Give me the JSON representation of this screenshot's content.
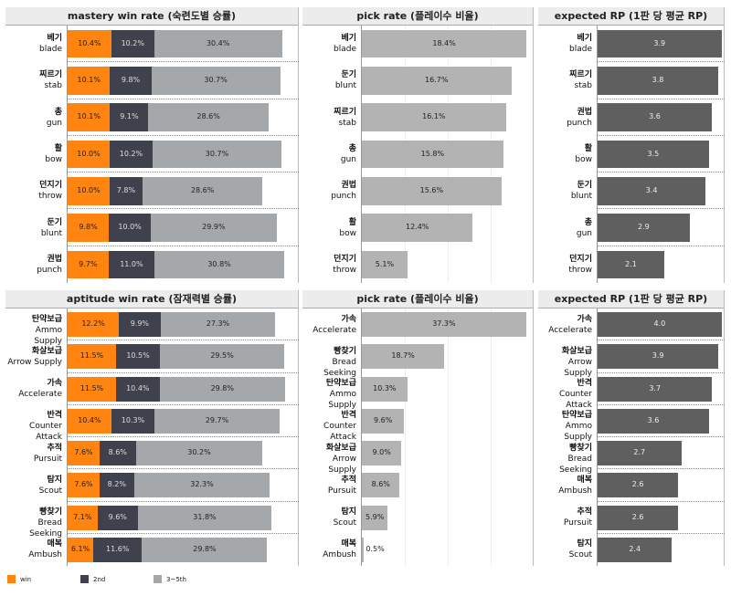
{
  "legend": [
    {
      "label": "win",
      "color": "#ff8410"
    },
    {
      "label": "2nd",
      "color": "#3f414d"
    },
    {
      "label": "3~5th",
      "color": "#a5a8ab"
    }
  ],
  "chart_data": [
    {
      "type": "bar",
      "stacked": true,
      "title": "mastery win rate (숙련도별 승률)",
      "xlim": [
        0,
        55
      ],
      "categories": [
        [
          "베기",
          "blade"
        ],
        [
          "찌르기",
          "stab"
        ],
        [
          "총",
          "gun"
        ],
        [
          "활",
          "bow"
        ],
        [
          "던지기",
          "throw"
        ],
        [
          "둔기",
          "blunt"
        ],
        [
          "권법",
          "punch"
        ]
      ],
      "series": [
        {
          "name": "win",
          "values": [
            10.4,
            10.1,
            10.1,
            10.0,
            10.0,
            9.8,
            9.7
          ]
        },
        {
          "name": "2nd",
          "values": [
            10.2,
            9.8,
            9.1,
            10.2,
            7.8,
            10.0,
            11.0
          ]
        },
        {
          "name": "3~5th",
          "values": [
            30.4,
            30.7,
            28.6,
            30.7,
            28.6,
            29.9,
            30.8
          ]
        }
      ],
      "unit": "%"
    },
    {
      "type": "bar",
      "title": "pick rate (플레이수 비율)",
      "xlim": [
        0,
        19.2
      ],
      "categories": [
        [
          "베기",
          "blade"
        ],
        [
          "둔기",
          "blunt"
        ],
        [
          "찌르기",
          "stab"
        ],
        [
          "총",
          "gun"
        ],
        [
          "권법",
          "punch"
        ],
        [
          "활",
          "bow"
        ],
        [
          "던지기",
          "throw"
        ]
      ],
      "series": [
        {
          "name": "pick rate",
          "values": [
            18.4,
            16.7,
            16.1,
            15.8,
            15.6,
            12.4,
            5.1
          ]
        }
      ],
      "unit": "%",
      "color": "#b3b3b3",
      "grid": true
    },
    {
      "type": "bar",
      "title": "expected RP (1판 당 평균 RP)",
      "xlim": [
        0,
        4.0
      ],
      "categories": [
        [
          "베기",
          "blade"
        ],
        [
          "찌르기",
          "stab"
        ],
        [
          "권법",
          "punch"
        ],
        [
          "활",
          "bow"
        ],
        [
          "둔기",
          "blunt"
        ],
        [
          "총",
          "gun"
        ],
        [
          "던지기",
          "throw"
        ]
      ],
      "series": [
        {
          "name": "expected RP",
          "values": [
            3.9,
            3.8,
            3.6,
            3.5,
            3.4,
            2.9,
            2.1
          ]
        }
      ],
      "unit": "",
      "color": "#5f5f5f"
    },
    {
      "type": "bar",
      "stacked": true,
      "title": "aptitude win rate (잠재력별 승률)",
      "xlim": [
        0,
        55
      ],
      "categories": [
        [
          "탄약보급",
          "Ammo Supply"
        ],
        [
          "화살보급",
          "Arrow Supply"
        ],
        [
          "가속",
          "Accelerate"
        ],
        [
          "반격",
          "Counter Attack"
        ],
        [
          "추적",
          "Pursuit"
        ],
        [
          "탐지",
          "Scout"
        ],
        [
          "빵찾기",
          "Bread Seeking"
        ],
        [
          "매복",
          "Ambush"
        ]
      ],
      "series": [
        {
          "name": "win",
          "values": [
            12.2,
            11.5,
            11.5,
            10.4,
            7.6,
            7.6,
            7.1,
            6.1
          ]
        },
        {
          "name": "2nd",
          "values": [
            9.9,
            10.5,
            10.4,
            10.3,
            8.6,
            8.2,
            9.6,
            11.6
          ]
        },
        {
          "name": "3~5th",
          "values": [
            27.3,
            29.5,
            29.8,
            29.7,
            30.2,
            32.3,
            31.8,
            29.8
          ]
        }
      ],
      "unit": "%"
    },
    {
      "type": "bar",
      "title": "pick rate (플레이수 비율)",
      "xlim": [
        0,
        39
      ],
      "categories": [
        [
          "가속",
          "Accelerate"
        ],
        [
          "빵찾기",
          "Bread Seeking"
        ],
        [
          "탄약보급",
          "Ammo Supply"
        ],
        [
          "반격",
          "Counter Attack"
        ],
        [
          "화살보급",
          "Arrow Supply"
        ],
        [
          "추적",
          "Pursuit"
        ],
        [
          "탐지",
          "Scout"
        ],
        [
          "매복",
          "Ambush"
        ]
      ],
      "series": [
        {
          "name": "pick rate",
          "values": [
            37.3,
            18.7,
            10.3,
            9.6,
            9.0,
            8.6,
            5.9,
            0.5
          ]
        }
      ],
      "unit": "%",
      "color": "#b3b3b3",
      "grid": true
    },
    {
      "type": "bar",
      "title": "expected RP (1판 당 평균 RP)",
      "xlim": [
        0,
        4.1
      ],
      "categories": [
        [
          "가속",
          "Accelerate"
        ],
        [
          "화살보급",
          "Arrow Supply"
        ],
        [
          "반격",
          "Counter Attack"
        ],
        [
          "탄약보급",
          "Ammo Supply"
        ],
        [
          "빵찾기",
          "Bread Seeking"
        ],
        [
          "매복",
          "Ambush"
        ],
        [
          "추적",
          "Pursuit"
        ],
        [
          "탐지",
          "Scout"
        ]
      ],
      "series": [
        {
          "name": "expected RP",
          "values": [
            4.0,
            3.9,
            3.7,
            3.6,
            2.7,
            2.6,
            2.6,
            2.4
          ]
        }
      ],
      "unit": "",
      "color": "#5f5f5f"
    }
  ]
}
